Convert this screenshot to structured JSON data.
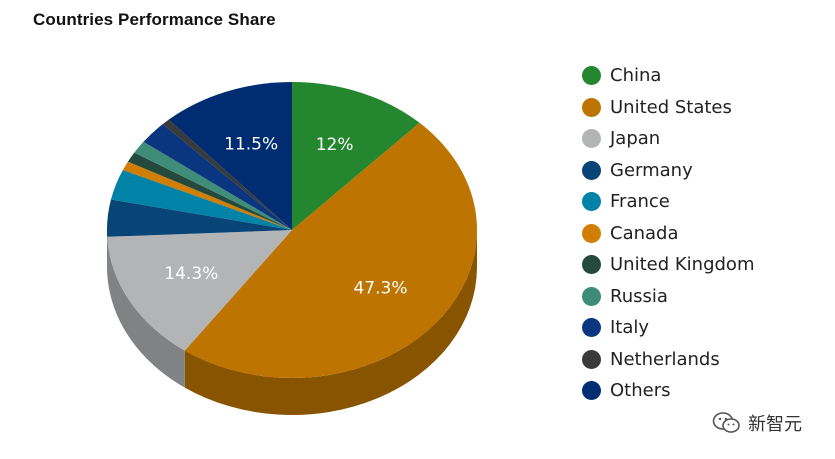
{
  "chart_data": {
    "type": "pie",
    "title": "Countries Performance Share",
    "categories": [
      "China",
      "United States",
      "Japan",
      "Germany",
      "France",
      "Canada",
      "United Kingdom",
      "Russia",
      "Italy",
      "Netherlands",
      "Others"
    ],
    "values": [
      12,
      47.3,
      14.3,
      4,
      3.3,
      1,
      1.1,
      1.4,
      2.5,
      0.7,
      11.5
    ],
    "labels": [
      "12%",
      "47.3%",
      "14.3%",
      "",
      "",
      "",
      "",
      "",
      "",
      "",
      "11.5%"
    ],
    "colors": [
      "#24862f",
      "#bd7400",
      "#b3b4b6",
      "#084475",
      "#0083a6",
      "#d17e06",
      "#234a3c",
      "#3f8c78",
      "#0a3680",
      "#3a3a3a",
      "#002d72"
    ],
    "legend_position": "right",
    "style": "3d"
  },
  "watermark": {
    "text": "新智元",
    "icon": "wechat-icon"
  }
}
